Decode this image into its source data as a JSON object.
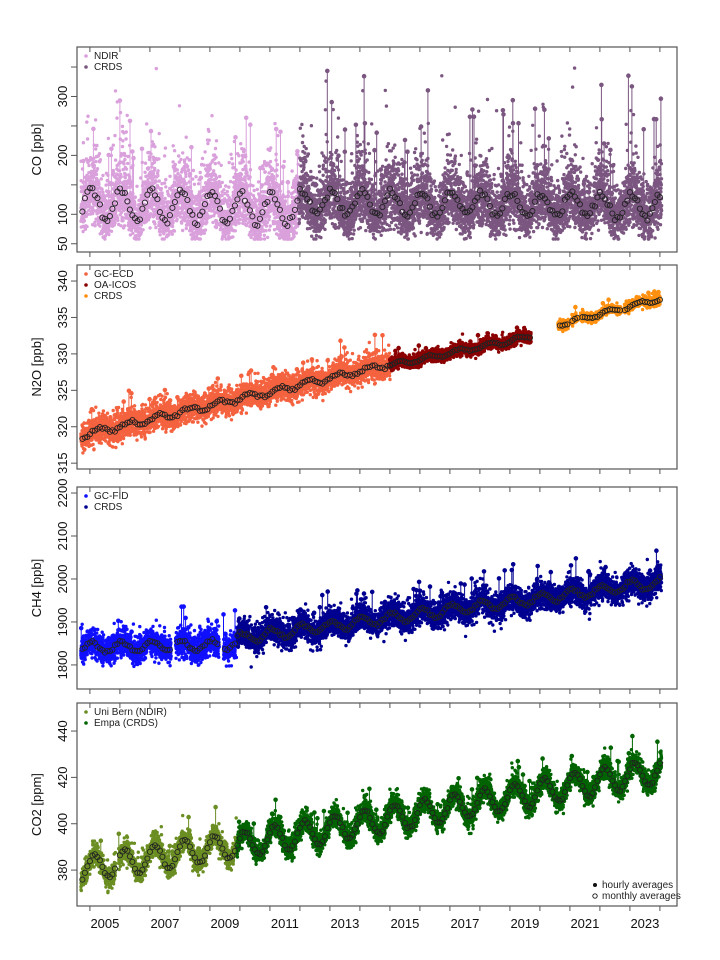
{
  "chart_data": {
    "type": "scatter",
    "title": "",
    "xlabel": "",
    "x_range": [
      2004.57,
      2024.57
    ],
    "x_ticks": [
      2005,
      2006,
      2007,
      2008,
      2009,
      2010,
      2011,
      2012,
      2013,
      2014,
      2015,
      2016,
      2017,
      2018,
      2019,
      2020,
      2021,
      2022,
      2023,
      2024
    ],
    "x_tick_labels": [
      {
        "label": "2005",
        "at": 2005.5
      },
      {
        "label": "2007",
        "at": 2007.5
      },
      {
        "label": "2009",
        "at": 2009.5
      },
      {
        "label": "2011",
        "at": 2011.5
      },
      {
        "label": "2013",
        "at": 2013.5
      },
      {
        "label": "2015",
        "at": 2015.5
      },
      {
        "label": "2017",
        "at": 2017.5
      },
      {
        "label": "2019",
        "at": 2019.5
      },
      {
        "label": "2021",
        "at": 2021.5
      },
      {
        "label": "2023",
        "at": 2023.5
      }
    ],
    "grid": false,
    "panels": [
      {
        "id": "co",
        "ylabel": "CO [ppb]",
        "ylim": [
          36,
          384
        ],
        "y_ticks": [
          50,
          100,
          150,
          200,
          250,
          300,
          350
        ],
        "y_tick_labels": [
          "50",
          "100",
          "",
          "200",
          "",
          "300",
          ""
        ],
        "legend": {
          "position": "top-left",
          "entries": [
            {
              "label": "NDIR",
              "color": "#d9a0dc"
            },
            {
              "label": "CRDS",
              "color": "#7a5680"
            }
          ]
        },
        "series": [
          {
            "name": "NDIR",
            "color": "#d9a0dc",
            "start": 2004.7,
            "end": 2011.95,
            "base": 118,
            "trend_per_year": -1.5,
            "seasonal_amp": 25,
            "seasonal_phase": 0.05,
            "spread": 55,
            "spike_max": 350,
            "log_spread": true
          },
          {
            "name": "CRDS",
            "color": "#7a5680",
            "start": 2011.95,
            "end": 2024.05,
            "base": 120,
            "trend_per_year": -0.5,
            "seasonal_amp": 20,
            "seasonal_phase": 0.05,
            "spread": 50,
            "spike_max": 350,
            "log_spread": true
          }
        ]
      },
      {
        "id": "n2o",
        "ylabel": "N2O [ppb]",
        "ylim": [
          314.2,
          342.2
        ],
        "y_ticks": [
          315,
          320,
          325,
          330,
          335,
          340
        ],
        "y_tick_labels": [
          "315",
          "320",
          "325",
          "330",
          "335",
          "340"
        ],
        "legend": {
          "position": "top-left",
          "entries": [
            {
              "label": "GC-ECD",
              "color": "#f4623f"
            },
            {
              "label": "OA-ICOS",
              "color": "#8b0000"
            },
            {
              "label": "CRDS",
              "color": "#ff9010"
            }
          ]
        },
        "series": [
          {
            "name": "GC-ECD",
            "color": "#f4623f",
            "start": 2004.7,
            "end": 2015.0,
            "base": 318.8,
            "trend_per_year": 0.95,
            "seasonal_amp": 0.4,
            "seasonal_phase": 0.3,
            "spread": 2.6,
            "spike_max": 338
          },
          {
            "name": "OA-ICOS",
            "color": "#8b0000",
            "start": 2015.0,
            "end": 2019.7,
            "base": 328.4,
            "trend_per_year": 0.85,
            "seasonal_amp": 0.3,
            "seasonal_phase": 0.3,
            "spread": 1.2,
            "spike_max": 335
          },
          {
            "name": "CRDS",
            "color": "#ff9010",
            "start": 2020.6,
            "end": 2024.0,
            "base": 334.0,
            "trend_per_year": 1.05,
            "seasonal_amp": 0.3,
            "seasonal_phase": 0.3,
            "spread": 0.9,
            "spike_max": 340
          }
        ],
        "gaps": [
          [
            2019.7,
            2020.6
          ],
          [
            2020.95,
            2021.05
          ],
          [
            2021.25,
            2021.35
          ],
          [
            2022.7,
            2022.8
          ]
        ]
      },
      {
        "id": "ch4",
        "ylabel": "CH4 [ppb]",
        "ylim": [
          1744,
          2214
        ],
        "y_ticks": [
          1800,
          1900,
          2000,
          2100,
          2200
        ],
        "y_tick_labels": [
          "1800",
          "1900",
          "2000",
          "2100",
          "2200"
        ],
        "legend": {
          "position": "top-left",
          "entries": [
            {
              "label": "GC-FID",
              "color": "#1010ff"
            },
            {
              "label": "CRDS",
              "color": "#000090"
            }
          ]
        },
        "series": [
          {
            "name": "GC-FID",
            "color": "#1010ff",
            "start": 2004.7,
            "end": 2009.9,
            "base": 1840,
            "trend_per_year": 1.5,
            "seasonal_amp": 12,
            "seasonal_phase": 0.05,
            "spread": 45,
            "spike_max": 2065
          },
          {
            "name": "CRDS",
            "color": "#000090",
            "start": 2009.9,
            "end": 2024.05,
            "base": 1862,
            "trend_per_year": 9.2,
            "seasonal_amp": 12,
            "seasonal_phase": 0.05,
            "spread": 45,
            "spike_max": 2210
          }
        ],
        "gaps": [
          [
            2007.7,
            2007.85
          ],
          [
            2009.3,
            2009.45
          ]
        ]
      },
      {
        "id": "co2",
        "ylabel": "CO2 [ppm]",
        "ylim": [
          364.5,
          452.1
        ],
        "y_ticks": [
          380,
          400,
          420,
          440
        ],
        "y_tick_labels": [
          "380",
          "400",
          "420",
          "440"
        ],
        "legend": {
          "position": "top-left",
          "entries": [
            {
              "label": "Uni Bern (NDIR)",
              "color": "#6b8e23"
            },
            {
              "label": "Empa (CRDS)",
              "color": "#006400"
            }
          ]
        },
        "averages_legend": {
          "position": "bottom-right",
          "entries": [
            {
              "label": "hourly averages",
              "symbol": "filled-dot"
            },
            {
              "label": "monthly averages",
              "symbol": "open-circle"
            }
          ]
        },
        "series": [
          {
            "name": "Uni Bern (NDIR)",
            "color": "#6b8e23",
            "start": 2004.7,
            "end": 2009.9,
            "base": 380.5,
            "trend_per_year": 2.0,
            "seasonal_amp": 5.5,
            "seasonal_phase": 0.15,
            "spread": 7,
            "spike_max": 410
          },
          {
            "name": "Empa (CRDS)",
            "color": "#006400",
            "start": 2009.9,
            "end": 2024.05,
            "base": 390.5,
            "trend_per_year": 2.3,
            "seasonal_amp": 5.5,
            "seasonal_phase": 0.15,
            "spread": 7,
            "spike_max": 450
          }
        ],
        "gaps": [
          [
            2005.85,
            2005.95
          ]
        ]
      }
    ],
    "marker_types": {
      "hourly": "filled-dot",
      "monthly": "open-circle"
    }
  },
  "legend_text": {
    "co": [
      "NDIR",
      "CRDS"
    ],
    "n2o": [
      "GC-ECD",
      "OA-ICOS",
      "CRDS"
    ],
    "ch4": [
      "GC-FID",
      "CRDS"
    ],
    "co2": [
      "Uni Bern (NDIR)",
      "Empa (CRDS)"
    ],
    "averages": [
      "hourly averages",
      "monthly averages"
    ]
  }
}
